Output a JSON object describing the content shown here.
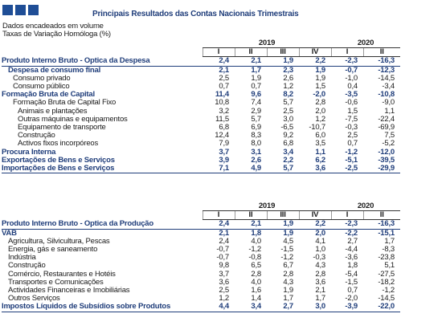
{
  "title": "Principais Resultados das Contas Nacionais Trimestrais",
  "notes": [
    "Dados encadeados em volume",
    "Taxas de Variação Homóloga (%)"
  ],
  "years": [
    "2019",
    "2020"
  ],
  "quarters": [
    "I",
    "II",
    "III",
    "IV",
    "I",
    "II"
  ],
  "table1": [
    {
      "label": "Produto Interno Bruto - Óptica da Despesa",
      "values": [
        "2,4",
        "2,1",
        "1,9",
        "2,2",
        "-2,3",
        "-16,3"
      ],
      "style": "main top",
      "indent": 0
    },
    {
      "label": "Despesa de consumo final",
      "values": [
        "2,1",
        "1,7",
        "2,3",
        "1,9",
        "-0,7",
        "-12,3"
      ],
      "style": "main",
      "indent": 1
    },
    {
      "label": "Consumo privado",
      "values": [
        "2,5",
        "1,9",
        "2,6",
        "1,9",
        "-1,0",
        "-14,5"
      ],
      "style": "",
      "indent": 2
    },
    {
      "label": "Consumo público",
      "values": [
        "0,7",
        "0,7",
        "1,2",
        "1,5",
        "0,4",
        "-3,4"
      ],
      "style": "",
      "indent": 2
    },
    {
      "label": "Formação Bruta de Capital",
      "values": [
        "11,4",
        "9,6",
        "8,2",
        "-2,0",
        "-3,5",
        "-10,8"
      ],
      "style": "main",
      "indent": 0
    },
    {
      "label": "Formação Bruta de Capital Fixo",
      "values": [
        "10,8",
        "7,4",
        "5,7",
        "2,8",
        "-0,6",
        "-9,0"
      ],
      "style": "",
      "indent": 2
    },
    {
      "label": "Animais e plantações",
      "values": [
        "3,2",
        "2,9",
        "2,5",
        "2,0",
        "1,5",
        "1,1"
      ],
      "style": "",
      "indent": 3
    },
    {
      "label": "Outras máquinas e equipamentos",
      "values": [
        "11,5",
        "5,7",
        "3,0",
        "1,2",
        "-7,5",
        "-22,4"
      ],
      "style": "",
      "indent": 3
    },
    {
      "label": "Equipamento de transporte",
      "values": [
        "6,8",
        "6,9",
        "-6,5",
        "-10,7",
        "-0,3",
        "-69,9"
      ],
      "style": "",
      "indent": 3
    },
    {
      "label": "Construção",
      "values": [
        "12,4",
        "8,3",
        "9,2",
        "6,0",
        "2,5",
        "7,5"
      ],
      "style": "",
      "indent": 3
    },
    {
      "label": "Activos fixos incorpóreos",
      "values": [
        "7,9",
        "8,0",
        "6,8",
        "3,5",
        "0,7",
        "-5,2"
      ],
      "style": "",
      "indent": 3
    },
    {
      "label": "Procura Interna",
      "values": [
        "3,7",
        "3,1",
        "3,4",
        "1,1",
        "-1,2",
        "-12,0"
      ],
      "style": "main",
      "indent": 0
    },
    {
      "label": "Exportações de Bens e Serviços",
      "values": [
        "3,9",
        "2,6",
        "2,2",
        "6,2",
        "-5,1",
        "-39,5"
      ],
      "style": "main",
      "indent": 0
    },
    {
      "label": "Importações de Bens e Serviços",
      "values": [
        "7,1",
        "4,9",
        "5,7",
        "3,6",
        "-2,5",
        "-29,9"
      ],
      "style": "main last",
      "indent": 0
    }
  ],
  "table2": [
    {
      "label": "Produto Interno Bruto - Óptica da Produção",
      "values": [
        "2,4",
        "2,1",
        "1,9",
        "2,2",
        "-2,3",
        "-16,3"
      ],
      "style": "main top",
      "indent": 0
    },
    {
      "label": "VAB",
      "values": [
        "2,1",
        "1,8",
        "1,9",
        "2,0",
        "-2,2",
        "-15,1"
      ],
      "style": "main",
      "indent": 0
    },
    {
      "label": "Agricultura, Silvicultura, Pescas",
      "values": [
        "2,4",
        "4,0",
        "4,5",
        "4,1",
        "2,7",
        "1,7"
      ],
      "style": "",
      "indent": 1
    },
    {
      "label": "Energia, gás e saneamento",
      "values": [
        "-0,7",
        "-1,2",
        "-1,5",
        "1,0",
        "-4,4",
        "-8,3"
      ],
      "style": "",
      "indent": 1
    },
    {
      "label": "Indústria",
      "values": [
        "-0,7",
        "-0,8",
        "-1,2",
        "-0,3",
        "-3,6",
        "-23,8"
      ],
      "style": "",
      "indent": 1
    },
    {
      "label": "Construção",
      "values": [
        "9,8",
        "6,5",
        "6,7",
        "4,3",
        "1,8",
        "5,1"
      ],
      "style": "",
      "indent": 1
    },
    {
      "label": "Comércio, Restaurantes e Hotéis",
      "values": [
        "3,7",
        "2,8",
        "2,8",
        "2,8",
        "-5,4",
        "-27,5"
      ],
      "style": "",
      "indent": 1
    },
    {
      "label": "Transportes e Comunicações",
      "values": [
        "3,6",
        "4,0",
        "4,3",
        "3,6",
        "-1,5",
        "-18,2"
      ],
      "style": "",
      "indent": 1
    },
    {
      "label": "Actividades Financeiras e Imobiliárias",
      "values": [
        "2,5",
        "1,6",
        "1,9",
        "2,1",
        "0,7",
        "-1,2"
      ],
      "style": "",
      "indent": 1
    },
    {
      "label": "Outros Serviços",
      "values": [
        "1,2",
        "1,4",
        "1,7",
        "1,7",
        "-2,0",
        "-14,5"
      ],
      "style": "",
      "indent": 1
    },
    {
      "label": "Impostos Líquidos de Subsídios sobre Produtos",
      "values": [
        "4,4",
        "3,4",
        "2,7",
        "3,0",
        "-3,9",
        "-22,0"
      ],
      "style": "main last",
      "indent": 0
    }
  ]
}
